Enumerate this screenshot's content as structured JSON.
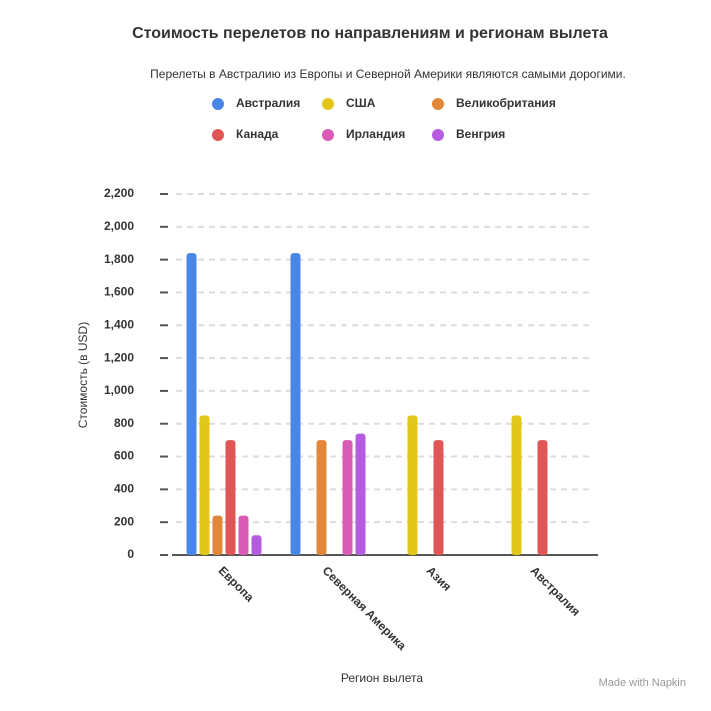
{
  "chart_data": {
    "type": "bar",
    "title": "Стоимость перелетов по направлениям и регионам вылета",
    "subtitle": "Перелеты в Австралию из Европы и Северной Америки являются самыми дорогими.",
    "x_label": "Регион вылета",
    "y_label": "Стоимость (в USD)",
    "categories": [
      "Европа",
      "Северная Америка",
      "Азия",
      "Австралия"
    ],
    "series": [
      {
        "name": "Австралия",
        "color": "#4a86e8",
        "values": [
          1840,
          1840,
          null,
          null
        ]
      },
      {
        "name": "США",
        "color": "#e0c71a",
        "values": [
          850,
          null,
          850,
          850
        ]
      },
      {
        "name": "Великобритания",
        "color": "#e0873a",
        "values": [
          240,
          700,
          null,
          null
        ]
      },
      {
        "name": "Канада",
        "color": "#e05555",
        "values": [
          700,
          null,
          700,
          700
        ]
      },
      {
        "name": "Ирландия",
        "color": "#d95bb5",
        "values": [
          240,
          700,
          null,
          null
        ]
      },
      {
        "name": "Венгрия",
        "color": "#b45be0",
        "values": [
          120,
          740,
          null,
          null
        ]
      }
    ],
    "ylim": [
      0,
      2200
    ],
    "yticks": [
      0,
      200,
      400,
      600,
      800,
      {
        "value": 1000,
        "label": "1,000"
      },
      {
        "value": 1200,
        "label": "1,200"
      },
      {
        "value": 1400,
        "label": "1,400"
      },
      {
        "value": 1600,
        "label": "1,600"
      },
      {
        "value": 1800,
        "label": "1,800"
      },
      {
        "value": 2000,
        "label": "2,000"
      },
      {
        "value": 2200,
        "label": "2,200"
      }
    ],
    "grid": true,
    "legend": "top",
    "watermark": "Made with Napkin"
  }
}
